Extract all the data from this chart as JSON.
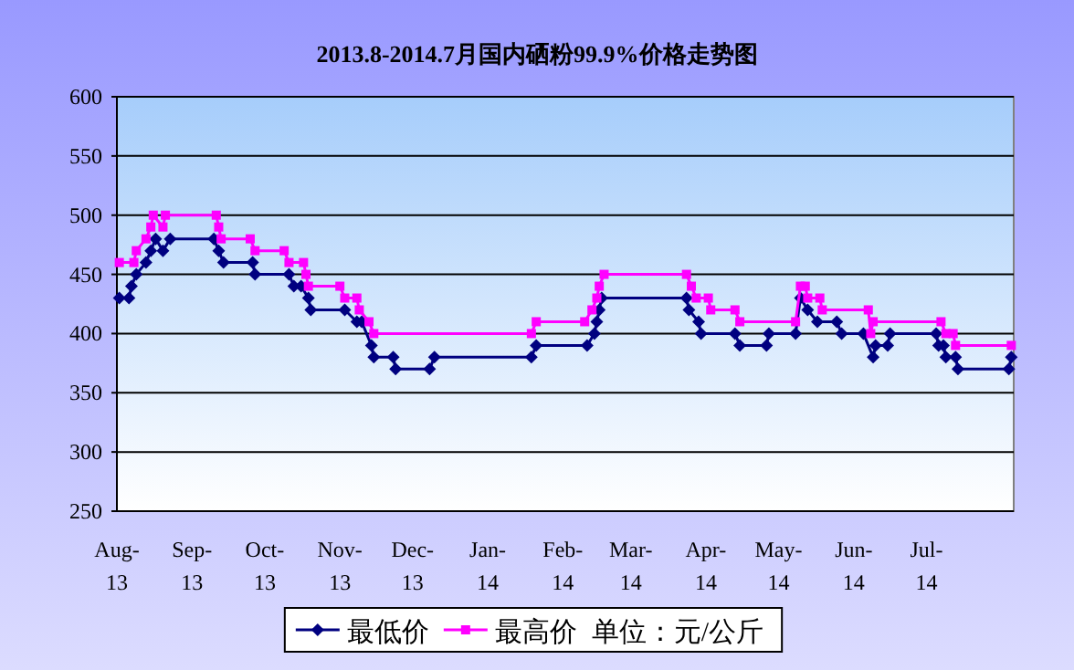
{
  "chart_data": {
    "type": "line",
    "title": "2013.8-2014.7月国内硒粉99.9%价格走势图",
    "xlim": [
      "2013-08-01",
      "2014-08-06"
    ],
    "xticks": [
      {
        "value": "2013-08-01",
        "label": "Aug-13"
      },
      {
        "value": "2013-09-01",
        "label": "Sep-13"
      },
      {
        "value": "2013-10-01",
        "label": "Oct-13"
      },
      {
        "value": "2013-11-01",
        "label": "Nov-13"
      },
      {
        "value": "2013-12-01",
        "label": "Dec-13"
      },
      {
        "value": "2014-01-01",
        "label": "Jan-14"
      },
      {
        "value": "2014-02-01",
        "label": "Feb-14"
      },
      {
        "value": "2014-03-01",
        "label": "Mar-14"
      },
      {
        "value": "2014-04-01",
        "label": "Apr-14"
      },
      {
        "value": "2014-05-01",
        "label": "May-14"
      },
      {
        "value": "2014-06-01",
        "label": "Jun-14"
      },
      {
        "value": "2014-07-01",
        "label": "Jul-14"
      }
    ],
    "ylim": [
      250,
      600
    ],
    "yticks": [
      250,
      300,
      350,
      400,
      450,
      500,
      550,
      600
    ],
    "grid": "y",
    "legend": "bottom",
    "line_style": "solid",
    "annotations": [
      "单位：元/公斤"
    ],
    "series": [
      {
        "name": "最低价",
        "color": "#000080",
        "marker": "diamond",
        "x": [
          "2013-08-02",
          "2013-08-06",
          "2013-08-07",
          "2013-08-09",
          "2013-08-13",
          "2013-08-15",
          "2013-08-17",
          "2013-08-20",
          "2013-08-23",
          "2013-09-10",
          "2013-09-12",
          "2013-09-14",
          "2013-09-26",
          "2013-09-27",
          "2013-10-11",
          "2013-10-13",
          "2013-10-16",
          "2013-10-19",
          "2013-10-20",
          "2013-11-03",
          "2013-11-08",
          "2013-11-10",
          "2013-11-14",
          "2013-11-15",
          "2013-11-23",
          "2013-11-24",
          "2013-12-08",
          "2013-12-10",
          "2014-01-19",
          "2014-01-21",
          "2014-02-11",
          "2014-02-14",
          "2014-02-15",
          "2014-02-16",
          "2014-02-17",
          "2014-03-24",
          "2014-03-25",
          "2014-03-29",
          "2014-03-30",
          "2014-04-13",
          "2014-04-15",
          "2014-04-26",
          "2014-04-27",
          "2014-05-08",
          "2014-05-10",
          "2014-05-13",
          "2014-05-17",
          "2014-05-25",
          "2014-05-27",
          "2014-06-05",
          "2014-06-09",
          "2014-06-10",
          "2014-06-15",
          "2014-06-16",
          "2014-07-05",
          "2014-07-06",
          "2014-07-08",
          "2014-07-09",
          "2014-07-13",
          "2014-07-14",
          "2014-08-04",
          "2014-08-05"
        ],
        "values": [
          430,
          430,
          440,
          450,
          460,
          470,
          480,
          470,
          480,
          480,
          470,
          460,
          460,
          450,
          450,
          440,
          440,
          430,
          420,
          420,
          410,
          410,
          390,
          380,
          380,
          370,
          370,
          380,
          380,
          390,
          390,
          400,
          410,
          420,
          430,
          430,
          420,
          410,
          400,
          400,
          390,
          390,
          400,
          400,
          430,
          420,
          410,
          410,
          400,
          400,
          380,
          390,
          390,
          400,
          400,
          390,
          390,
          380,
          380,
          370,
          370,
          380
        ]
      },
      {
        "name": "最高价",
        "color": "#ff00ff",
        "marker": "square",
        "x": [
          "2013-08-02",
          "2013-08-08",
          "2013-08-09",
          "2013-08-13",
          "2013-08-15",
          "2013-08-16",
          "2013-08-20",
          "2013-08-21",
          "2013-09-11",
          "2013-09-12",
          "2013-09-13",
          "2013-09-25",
          "2013-09-27",
          "2013-10-09",
          "2013-10-11",
          "2013-10-17",
          "2013-10-18",
          "2013-10-19",
          "2013-11-01",
          "2013-11-03",
          "2013-11-08",
          "2013-11-09",
          "2013-11-13",
          "2013-11-15",
          "2014-01-19",
          "2014-01-21",
          "2014-02-10",
          "2014-02-13",
          "2014-02-15",
          "2014-02-16",
          "2014-02-18",
          "2014-03-24",
          "2014-03-26",
          "2014-03-28",
          "2014-04-02",
          "2014-04-03",
          "2014-04-13",
          "2014-04-15",
          "2014-05-08",
          "2014-05-10",
          "2014-05-12",
          "2014-05-13",
          "2014-05-18",
          "2014-05-19",
          "2014-06-07",
          "2014-06-08",
          "2014-06-09",
          "2014-07-07",
          "2014-07-09",
          "2014-07-12",
          "2014-07-13",
          "2014-08-05"
        ],
        "values": [
          460,
          460,
          470,
          480,
          490,
          500,
          490,
          500,
          500,
          490,
          480,
          480,
          470,
          470,
          460,
          460,
          450,
          440,
          440,
          430,
          430,
          420,
          410,
          400,
          400,
          410,
          410,
          420,
          430,
          440,
          450,
          450,
          440,
          430,
          430,
          420,
          420,
          410,
          410,
          440,
          440,
          430,
          430,
          420,
          420,
          400,
          410,
          410,
          400,
          400,
          390,
          390
        ]
      }
    ]
  }
}
